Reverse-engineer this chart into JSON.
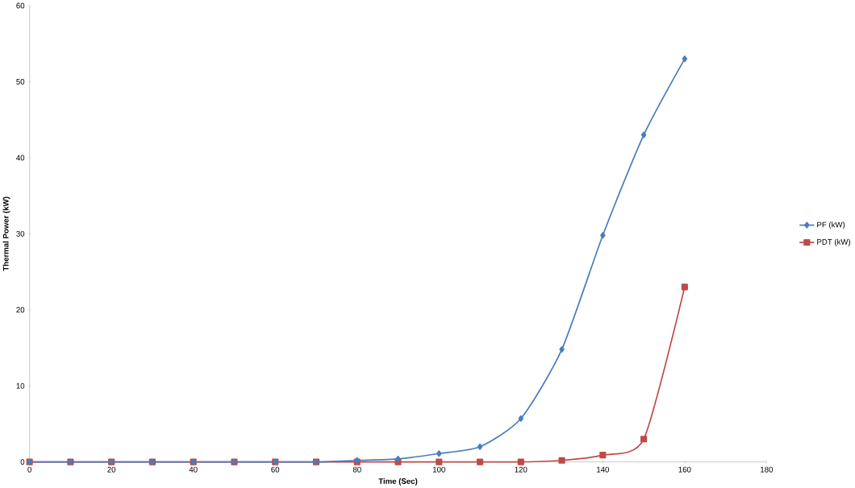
{
  "chart_data": {
    "type": "line",
    "xlabel": "Time (Sec)",
    "ylabel": "Thermal Power (kW)",
    "x": [
      0,
      10,
      20,
      30,
      40,
      50,
      60,
      70,
      80,
      90,
      100,
      110,
      120,
      130,
      140,
      150,
      160
    ],
    "series": [
      {
        "name": "PF (kW)",
        "color": "#4a7ebb",
        "marker": "diamond",
        "values": [
          0,
          0,
          0,
          0,
          0,
          0,
          0,
          0,
          0.2,
          0.4,
          1.1,
          2.0,
          5.7,
          14.8,
          29.8,
          43,
          53
        ]
      },
      {
        "name": "PDT (kW)",
        "color": "#be4b48",
        "marker": "square",
        "values": [
          0,
          0,
          0,
          0,
          0,
          0,
          0,
          0,
          0,
          0,
          0,
          0,
          0,
          0.2,
          0.9,
          3.0,
          23
        ]
      }
    ],
    "xlim": [
      0,
      180
    ],
    "xticks": [
      0,
      20,
      40,
      60,
      80,
      100,
      120,
      140,
      160,
      180
    ],
    "ylim": [
      0,
      60
    ],
    "yticks": [
      0,
      10,
      20,
      30,
      40,
      50,
      60
    ],
    "grid": false,
    "legend": "right"
  }
}
